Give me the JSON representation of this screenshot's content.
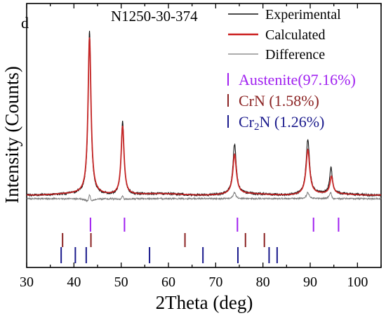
{
  "chart_data": {
    "type": "line",
    "panel_label": "d",
    "sample_label": "N1250-30-374",
    "xlabel": "2Theta (deg)",
    "ylabel": "Intensity (Counts)",
    "xlim": [
      30,
      105
    ],
    "xticks": [
      30,
      40,
      50,
      60,
      70,
      80,
      90,
      100
    ],
    "grid": false,
    "legend_position": "top-right",
    "series": [
      {
        "name": "Experimental",
        "color": "#111111",
        "peaks": [
          {
            "x": 43.3,
            "height": 0.95,
            "width": 0.35
          },
          {
            "x": 50.3,
            "height": 0.43,
            "width": 0.35
          },
          {
            "x": 74.0,
            "height": 0.29,
            "width": 0.42
          },
          {
            "x": 89.5,
            "height": 0.32,
            "width": 0.45
          },
          {
            "x": 94.4,
            "height": 0.15,
            "width": 0.35
          }
        ]
      },
      {
        "name": "Calculated",
        "color": "#cc1f1f",
        "peaks": [
          {
            "x": 43.3,
            "height": 0.91,
            "width": 0.38
          },
          {
            "x": 50.3,
            "height": 0.4,
            "width": 0.38
          },
          {
            "x": 74.0,
            "height": 0.23,
            "width": 0.45
          },
          {
            "x": 89.5,
            "height": 0.26,
            "width": 0.48
          },
          {
            "x": 94.5,
            "height": 0.1,
            "width": 0.38
          }
        ]
      },
      {
        "name": "Difference",
        "color": "#7a7a7a"
      }
    ],
    "phases": [
      {
        "name": "Austenite(97.16%)",
        "color": "#a020f0",
        "positions": [
          43.5,
          50.7,
          74.6,
          90.7,
          96.0
        ]
      },
      {
        "name": "CrN (1.58%)",
        "color": "#8b2323",
        "positions": [
          37.6,
          43.6,
          63.5,
          76.3,
          80.3
        ]
      },
      {
        "name": "Cr2N (1.26%)",
        "color": "#1a1a8c",
        "positions": [
          37.3,
          40.3,
          42.6,
          56.0,
          67.3,
          74.7,
          81.3,
          83.0
        ]
      }
    ]
  }
}
